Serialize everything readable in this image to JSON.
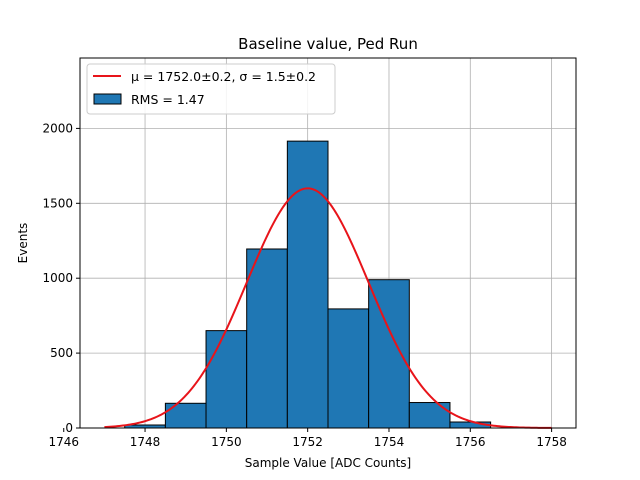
{
  "chart_data": {
    "type": "bar",
    "title": "Baseline value, Ped Run",
    "xlabel": "Sample Value [ADC Counts]",
    "ylabel": "Events",
    "xlim": [
      1746.4,
      1758.6
    ],
    "ylim": [
      0,
      2470
    ],
    "xticks": [
      1746,
      1748,
      1750,
      1752,
      1754,
      1756,
      1758
    ],
    "yticks": [
      0,
      500,
      1000,
      1500,
      2000
    ],
    "grid": true,
    "legend_position": "top-left",
    "histogram": {
      "name": "RMS = 1.47",
      "color": "#1f77b4",
      "edgecolor": "#000000",
      "bin_edges": [
        1747.5,
        1748.5,
        1749.5,
        1750.5,
        1751.5,
        1752.5,
        1753.5,
        1754.5,
        1755.5,
        1756.5
      ],
      "counts": [
        20,
        165,
        650,
        1195,
        1915,
        795,
        990,
        170,
        40
      ]
    },
    "fit": {
      "type": "gaussian",
      "name_prefix": "μ = 1752.0±0.2, ",
      "name_suffix": "σ = 1.5±0.2",
      "color": "#e8141a",
      "mu": 1752.0,
      "sigma": 1.5,
      "amplitude": 1600,
      "x_range": [
        1747.0,
        1758.0
      ]
    }
  }
}
